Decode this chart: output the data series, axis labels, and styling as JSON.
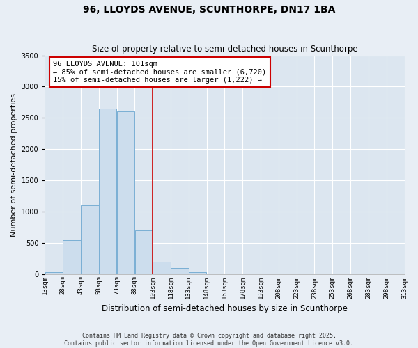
{
  "title": "96, LLOYDS AVENUE, SCUNTHORPE, DN17 1BA",
  "subtitle": "Size of property relative to semi-detached houses in Scunthorpe",
  "xlabel": "Distribution of semi-detached houses by size in Scunthorpe",
  "ylabel": "Number of semi-detached properties",
  "bin_labels": [
    "13sqm",
    "28sqm",
    "43sqm",
    "58sqm",
    "73sqm",
    "88sqm",
    "103sqm",
    "118sqm",
    "133sqm",
    "148sqm",
    "163sqm",
    "178sqm",
    "193sqm",
    "208sqm",
    "223sqm",
    "238sqm",
    "253sqm",
    "268sqm",
    "283sqm",
    "298sqm",
    "313sqm"
  ],
  "bin_starts": [
    13,
    28,
    43,
    58,
    73,
    88,
    103,
    118,
    133,
    148,
    163,
    178,
    193,
    208,
    223,
    238,
    253,
    268,
    283,
    298
  ],
  "bin_width": 15,
  "bar_values": [
    25,
    540,
    1100,
    2650,
    2600,
    700,
    200,
    100,
    30,
    5,
    0,
    0,
    0,
    0,
    0,
    0,
    0,
    0,
    0,
    0
  ],
  "bar_color": "#ccdded",
  "bar_edge_color": "#7aafd4",
  "property_sqm": 101,
  "property_bin_x": 103,
  "annotation_title": "96 LLOYDS AVENUE: 101sqm",
  "annotation_line1": "← 85% of semi-detached houses are smaller (6,720)",
  "annotation_line2": "15% of semi-detached houses are larger (1,222) →",
  "annotation_box_color": "#cc0000",
  "ylim": [
    0,
    3500
  ],
  "yticks": [
    0,
    500,
    1000,
    1500,
    2000,
    2500,
    3000,
    3500
  ],
  "xlim_min": 13,
  "xlim_max": 313,
  "footer_line1": "Contains HM Land Registry data © Crown copyright and database right 2025.",
  "footer_line2": "Contains public sector information licensed under the Open Government Licence v3.0.",
  "fig_bg_color": "#e8eef5",
  "plot_bg_color": "#dce6f0",
  "grid_color": "#ffffff",
  "title_fontsize": 10,
  "subtitle_fontsize": 8.5,
  "tick_fontsize": 6.5,
  "ylabel_fontsize": 8,
  "xlabel_fontsize": 8.5,
  "footer_fontsize": 6
}
